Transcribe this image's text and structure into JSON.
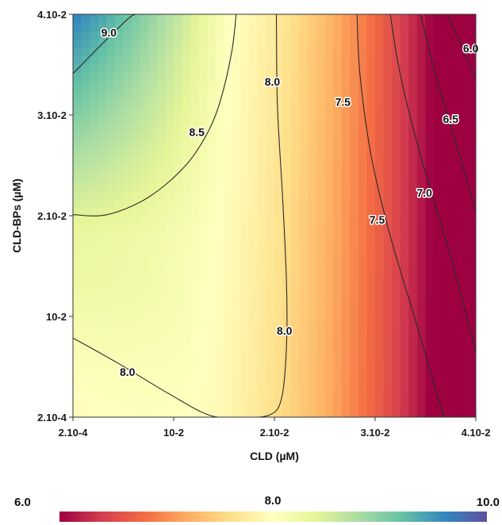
{
  "chart_data": {
    "type": "heatmap",
    "subtype": "contour",
    "xlabel": "CLD (µM)",
    "ylabel": "CLD-BPs  (µM)",
    "x_ticks": [
      {
        "label": "2.10-4",
        "value": 0.0002
      },
      {
        "label": "10-2",
        "value": 0.01
      },
      {
        "label": "2.10-2",
        "value": 0.02
      },
      {
        "label": "3.10-2",
        "value": 0.03
      },
      {
        "label": "4.10-2",
        "value": 0.04
      }
    ],
    "y_ticks": [
      {
        "label": "2.10-4",
        "value": 0.0002
      },
      {
        "label": "10-2",
        "value": 0.01
      },
      {
        "label": "2.10-2",
        "value": 0.02
      },
      {
        "label": "3.10-2",
        "value": 0.03
      },
      {
        "label": "4.10-2",
        "value": 0.04
      }
    ],
    "xlim": [
      0.0002,
      0.04
    ],
    "ylim": [
      0.0002,
      0.04
    ],
    "color_scale": {
      "min": 6.0,
      "mid": 8.0,
      "max": 10.0,
      "min_label": "6.0",
      "mid_label": "8.0",
      "max_label": "10.0",
      "colors": [
        "#9e0142",
        "#d53e4f",
        "#f46d43",
        "#fdae61",
        "#fee08b",
        "#ffffbf",
        "#e6f598",
        "#abdda4",
        "#66c2a5",
        "#3288bd",
        "#5e4fa2"
      ]
    },
    "contours": [
      {
        "level": 9.0,
        "label": "9.0",
        "points": [
          [
            0.0002,
            0.0341
          ],
          [
            0.0025,
            0.0365
          ],
          [
            0.0055,
            0.0395
          ],
          [
            0.0063,
            0.04
          ]
        ],
        "label_pos": [
          0.0037,
          0.0382
        ]
      },
      {
        "level": 8.5,
        "label": "8.5",
        "points": [
          [
            0.0002,
            0.0201
          ],
          [
            0.0035,
            0.0201
          ],
          [
            0.0075,
            0.0218
          ],
          [
            0.0112,
            0.025
          ],
          [
            0.0135,
            0.0285
          ],
          [
            0.0148,
            0.032
          ],
          [
            0.0158,
            0.0365
          ],
          [
            0.0162,
            0.04
          ]
        ],
        "label_pos": [
          0.0123,
          0.0283
        ]
      },
      {
        "level": 8.0,
        "label": "8.0",
        "points": [
          [
            0.0002,
            0.0079
          ],
          [
            0.0045,
            0.0055
          ],
          [
            0.0095,
            0.0025
          ],
          [
            0.0135,
            0.0004
          ],
          [
            0.0165,
            0.0002
          ],
          [
            0.0195,
            0.0004
          ],
          [
            0.0207,
            0.002
          ],
          [
            0.0212,
            0.007
          ],
          [
            0.0212,
            0.0135
          ],
          [
            0.0208,
            0.022
          ],
          [
            0.0203,
            0.031
          ],
          [
            0.0202,
            0.04
          ]
        ],
        "label_pos_list": [
          [
            0.0055,
            0.0046
          ],
          [
            0.021,
            0.0086
          ],
          [
            0.0198,
            0.0333
          ]
        ]
      },
      {
        "level": 7.5,
        "label": "7.5",
        "points": [
          [
            0.0282,
            0.04
          ],
          [
            0.0285,
            0.034
          ],
          [
            0.0296,
            0.026
          ],
          [
            0.0315,
            0.018
          ],
          [
            0.0342,
            0.009
          ],
          [
            0.0368,
            0.0002
          ]
        ],
        "label_pos_list": [
          [
            0.0268,
            0.0313
          ],
          [
            0.0302,
            0.0196
          ]
        ]
      },
      {
        "level": 7.0,
        "label": "7.0",
        "points": [
          [
            0.0315,
            0.04
          ],
          [
            0.0325,
            0.034
          ],
          [
            0.0345,
            0.026
          ],
          [
            0.0372,
            0.017
          ],
          [
            0.0395,
            0.0085
          ],
          [
            0.04,
            0.0065
          ]
        ],
        "label_pos": [
          0.0349,
          0.0223
        ]
      },
      {
        "level": 6.5,
        "label": "6.5",
        "points": [
          [
            0.0345,
            0.04
          ],
          [
            0.036,
            0.034
          ],
          [
            0.0378,
            0.028
          ],
          [
            0.04,
            0.0204
          ]
        ],
        "label_pos": [
          0.0375,
          0.0296
        ]
      },
      {
        "level": 6.0,
        "label": "6.0",
        "points": [
          [
            0.0372,
            0.04
          ],
          [
            0.0385,
            0.037
          ],
          [
            0.04,
            0.0336
          ]
        ],
        "label_pos": [
          0.0395,
          0.0366
        ]
      }
    ]
  }
}
